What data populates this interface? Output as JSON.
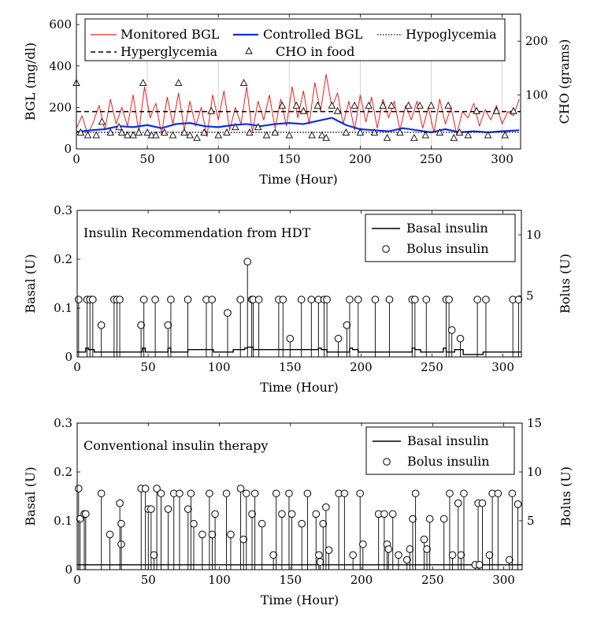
{
  "chart_data": [
    {
      "type": "line",
      "xlabel": "Time (Hour)",
      "ylabel": "BGL (mg/dl)",
      "ylabel_right": "CHO (grams)",
      "xlim": [
        0,
        313
      ],
      "ylim": [
        0,
        650
      ],
      "ylim_right": [
        0,
        250
      ],
      "xticks": [
        0,
        50,
        100,
        150,
        200,
        250,
        300
      ],
      "yticks": [
        0,
        200,
        400,
        600
      ],
      "yticks_right": [
        100,
        200
      ],
      "grid": "vertical",
      "legend": {
        "placement": "top",
        "entries": [
          "Monitored BGL",
          "Controlled BGL",
          "Hypoglycemia",
          "Hyperglycemia",
          "CHO in food"
        ]
      },
      "colors": {
        "monitored": "#e8201d",
        "controlled": "#1030d8",
        "threshold": "#000000"
      },
      "series": [
        {
          "name": "Monitored BGL",
          "x": [
            0,
            4,
            8,
            12,
            16,
            20,
            24,
            28,
            32,
            36,
            40,
            44,
            48,
            52,
            56,
            60,
            64,
            68,
            72,
            76,
            80,
            84,
            88,
            92,
            96,
            100,
            104,
            108,
            112,
            116,
            120,
            124,
            128,
            132,
            136,
            140,
            144,
            148,
            152,
            156,
            160,
            164,
            168,
            172,
            176,
            180,
            184,
            188,
            192,
            196,
            200,
            204,
            208,
            212,
            216,
            220,
            224,
            228,
            232,
            236,
            240,
            244,
            248,
            252,
            256,
            260,
            264,
            268,
            272,
            276,
            280,
            284,
            288,
            292,
            296,
            300,
            304,
            308,
            312
          ],
          "y": [
            100,
            160,
            70,
            130,
            210,
            90,
            240,
            120,
            200,
            110,
            260,
            80,
            300,
            150,
            220,
            70,
            250,
            120,
            270,
            90,
            230,
            110,
            200,
            60,
            260,
            140,
            280,
            90,
            200,
            120,
            300,
            80,
            230,
            140,
            260,
            100,
            240,
            110,
            300,
            150,
            280,
            120,
            320,
            180,
            360,
            200,
            270,
            120,
            230,
            90,
            260,
            130,
            250,
            100,
            240,
            150,
            230,
            90,
            210,
            140,
            230,
            100,
            200,
            80,
            240,
            120,
            200,
            70,
            180,
            150,
            220,
            110,
            190,
            140,
            210,
            120,
            180,
            160,
            240
          ]
        },
        {
          "name": "Controlled BGL",
          "x": [
            0,
            10,
            20,
            30,
            40,
            50,
            60,
            70,
            80,
            90,
            100,
            110,
            120,
            130,
            140,
            150,
            160,
            170,
            180,
            190,
            200,
            210,
            220,
            230,
            240,
            250,
            260,
            270,
            280,
            290,
            300,
            312
          ],
          "y": [
            82,
            90,
            95,
            110,
            105,
            115,
            100,
            120,
            125,
            110,
            105,
            115,
            120,
            110,
            120,
            125,
            120,
            135,
            150,
            115,
            95,
            90,
            85,
            100,
            90,
            80,
            95,
            80,
            85,
            80,
            85,
            90
          ]
        },
        {
          "name": "Hypoglycemia",
          "y": 80
        },
        {
          "name": "Hyperglycemia",
          "y": 180
        },
        {
          "name": "CHO in food",
          "axis": "right",
          "x": [
            0,
            3,
            8,
            14,
            18,
            24,
            30,
            32,
            36,
            40,
            44,
            47,
            50,
            53,
            56,
            62,
            68,
            72,
            76,
            80,
            85,
            90,
            95,
            100,
            106,
            112,
            118,
            122,
            128,
            134,
            140,
            145,
            150,
            155,
            160,
            166,
            170,
            173,
            176,
            180,
            184,
            190,
            196,
            200,
            206,
            210,
            216,
            219,
            222,
            228,
            234,
            238,
            242,
            246,
            250,
            256,
            262,
            266,
            270,
            276,
            282,
            290,
            296,
            302,
            308
          ],
          "y": [
            122,
            30,
            25,
            25,
            50,
            30,
            40,
            30,
            25,
            25,
            30,
            122,
            30,
            25,
            25,
            30,
            25,
            122,
            30,
            25,
            20,
            30,
            70,
            25,
            30,
            40,
            122,
            30,
            40,
            25,
            30,
            80,
            25,
            80,
            70,
            25,
            80,
            25,
            20,
            80,
            70,
            30,
            80,
            30,
            80,
            30,
            80,
            20,
            80,
            30,
            80,
            20,
            80,
            25,
            80,
            30,
            80,
            20,
            30,
            25,
            70,
            25,
            70,
            25,
            70
          ]
        }
      ]
    },
    {
      "type": "line",
      "annotation": "Insulin Recommendation from HDT",
      "xlabel": "Time (Hour)",
      "ylabel": "Basal (U)",
      "ylabel_right": "Bolus (U)",
      "xlim": [
        0,
        313
      ],
      "ylim": [
        0,
        0.3
      ],
      "ylim_right": [
        0,
        12
      ],
      "xticks": [
        0,
        50,
        100,
        150,
        200,
        250,
        300
      ],
      "yticks": [
        0,
        0.1,
        0.2,
        0.3
      ],
      "yticks_right": [
        5,
        10
      ],
      "legend": {
        "placement": "top-right",
        "entries": [
          "Basal insulin",
          "Bolus insulin"
        ]
      },
      "series": [
        {
          "name": "Basal insulin",
          "x": [
            0,
            6,
            8,
            12,
            24,
            46,
            48,
            64,
            66,
            78,
            96,
            110,
            118,
            120,
            124,
            170,
            172,
            176,
            192,
            194,
            198,
            236,
            238,
            242,
            258,
            260,
            266,
            272,
            286,
            312
          ],
          "y": [
            0.01,
            0.018,
            0.015,
            0.01,
            0.01,
            0.018,
            0.01,
            0.018,
            0.01,
            0.015,
            0.01,
            0.015,
            0.018,
            0.02,
            0.015,
            0.018,
            0.015,
            0.01,
            0.018,
            0.015,
            0.01,
            0.018,
            0.015,
            0.01,
            0.018,
            0.01,
            0.015,
            0.005,
            0.01,
            0.01
          ]
        },
        {
          "name": "Bolus insulin",
          "axis": "right",
          "x": [
            1,
            7,
            9,
            11,
            17,
            26,
            28,
            30,
            45,
            47,
            55,
            64,
            66,
            78,
            91,
            95,
            106,
            115,
            120,
            123,
            124,
            128,
            142,
            145,
            150,
            158,
            165,
            170,
            174,
            176,
            184,
            190,
            192,
            198,
            210,
            220,
            236,
            238,
            246,
            260,
            262,
            264,
            270,
            282,
            288,
            307,
            311
          ],
          "y": [
            4.7,
            4.7,
            4.7,
            4.7,
            2.6,
            4.7,
            4.7,
            4.7,
            2.6,
            4.7,
            4.7,
            2.6,
            4.7,
            4.7,
            4.7,
            4.7,
            3.6,
            4.7,
            7.8,
            4.7,
            4.7,
            4.7,
            4.7,
            4.7,
            1.5,
            4.7,
            4.7,
            4.7,
            4.7,
            4.7,
            1.5,
            2.6,
            4.7,
            4.7,
            4.7,
            4.7,
            4.7,
            4.7,
            4.7,
            4.7,
            4.7,
            2.2,
            1.5,
            4.7,
            4.7,
            4.7,
            4.7
          ]
        }
      ]
    },
    {
      "type": "line",
      "annotation": "Conventional insulin therapy",
      "xlabel": "Time (Hour)",
      "ylabel": "Basal (U)",
      "ylabel_right": "Bolus (U)",
      "xlim": [
        0,
        313
      ],
      "ylim": [
        0,
        0.3
      ],
      "ylim_right": [
        0,
        15
      ],
      "xticks": [
        0,
        50,
        100,
        150,
        200,
        250,
        300
      ],
      "yticks": [
        0,
        0.1,
        0.2,
        0.3
      ],
      "yticks_right": [
        5,
        10,
        15
      ],
      "legend": {
        "placement": "top-right",
        "entries": [
          "Basal insulin",
          "Bolus insulin"
        ]
      },
      "series": [
        {
          "name": "Basal insulin",
          "y": 0.01
        },
        {
          "name": "Bolus insulin",
          "axis": "right",
          "x": [
            1,
            2,
            5,
            6,
            17,
            23,
            30,
            31,
            31,
            45,
            48,
            50,
            52,
            54,
            56,
            59,
            64,
            68,
            72,
            78,
            80,
            82,
            88,
            93,
            95,
            97,
            105,
            108,
            115,
            117,
            119,
            123,
            125,
            130,
            138,
            140,
            144,
            149,
            151,
            158,
            162,
            168,
            170,
            171,
            173,
            175,
            177,
            184,
            188,
            194,
            199,
            201,
            212,
            216,
            218,
            219,
            222,
            226,
            232,
            234,
            236,
            238,
            244,
            246,
            248,
            258,
            262,
            264,
            268,
            270,
            272,
            280,
            282,
            283,
            285,
            290,
            292,
            296,
            304,
            306,
            310
          ],
          "y": [
            8.3,
            5.2,
            5.7,
            5.7,
            7.8,
            3.6,
            6.8,
            2.6,
            4.7,
            8.3,
            8.3,
            6.2,
            6.2,
            1.5,
            8.3,
            7.8,
            6.2,
            7.8,
            7.8,
            6.2,
            7.8,
            4.7,
            3.6,
            7.8,
            3.6,
            5.7,
            7.8,
            3.6,
            8.3,
            3.1,
            7.8,
            5.7,
            7.8,
            4.7,
            1.5,
            7.8,
            5.7,
            7.8,
            5.7,
            4.7,
            7.8,
            5.7,
            1.5,
            0.8,
            4.7,
            6.4,
            2.0,
            7.8,
            7.8,
            1.5,
            7.8,
            2.6,
            5.7,
            5.7,
            2.6,
            2.1,
            5.7,
            1.5,
            1.0,
            2.1,
            5.2,
            7.8,
            3.1,
            2.1,
            5.2,
            5.2,
            7.8,
            1.5,
            6.8,
            1.5,
            7.8,
            0.5,
            6.8,
            0.5,
            6.8,
            1.5,
            7.8,
            7.8,
            1.0,
            7.8,
            6.7
          ]
        }
      ]
    }
  ]
}
